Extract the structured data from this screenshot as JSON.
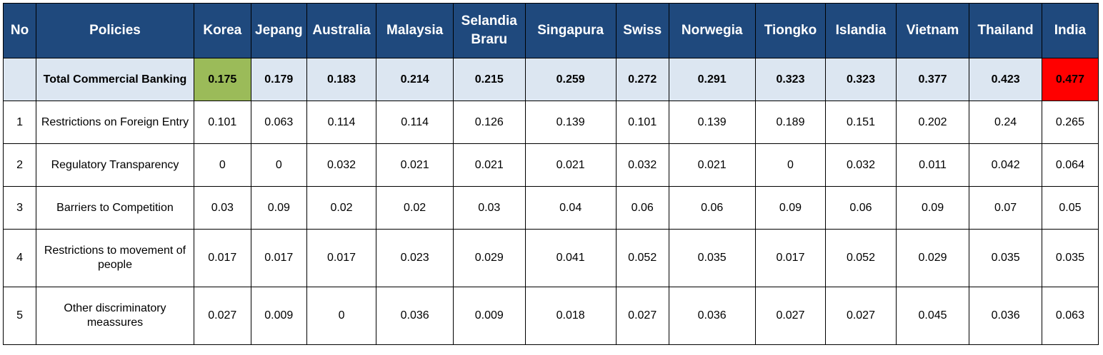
{
  "table": {
    "header": {
      "no": "No",
      "policies": "Policies",
      "countries": [
        "Korea",
        "Jepang",
        "Australia",
        "Malaysia",
        "Selandia Braru",
        "Singapura",
        "Swiss",
        "Norwegia",
        "Tiongko",
        "Islandia",
        "Vietnam",
        "Thailand",
        "India"
      ]
    },
    "total": {
      "no": "",
      "policy": "Total Commercial Banking",
      "values": [
        "0.175",
        "0.179",
        "0.183",
        "0.214",
        "0.215",
        "0.259",
        "0.272",
        "0.291",
        "0.323",
        "0.323",
        "0.377",
        "0.423",
        "0.477"
      ]
    },
    "rows": [
      {
        "no": "1",
        "policy": "Restrictions on Foreign Entry",
        "values": [
          "0.101",
          "0.063",
          "0.114",
          "0.114",
          "0.126",
          "0.139",
          "0.101",
          "0.139",
          "0.189",
          "0.151",
          "0.202",
          "0.24",
          "0.265"
        ]
      },
      {
        "no": "2",
        "policy": "Regulatory Transparency",
        "values": [
          "0",
          "0",
          "0.032",
          "0.021",
          "0.021",
          "0.021",
          "0.032",
          "0.021",
          "0",
          "0.032",
          "0.011",
          "0.042",
          "0.064"
        ]
      },
      {
        "no": "3",
        "policy": "Barriers to Competition",
        "values": [
          "0.03",
          "0.09",
          "0.02",
          "0.02",
          "0.03",
          "0.04",
          "0.06",
          "0.06",
          "0.09",
          "0.06",
          "0.09",
          "0.07",
          "0.05"
        ]
      },
      {
        "no": "4",
        "policy": "Restrictions to movement of people",
        "values": [
          "0.017",
          "0.017",
          "0.017",
          "0.023",
          "0.029",
          "0.041",
          "0.052",
          "0.035",
          "0.017",
          "0.052",
          "0.029",
          "0.035",
          "0.035"
        ]
      },
      {
        "no": "5",
        "policy": "Other discriminatory meassures",
        "values": [
          "0.027",
          "0.009",
          "0",
          "0.036",
          "0.009",
          "0.018",
          "0.027",
          "0.036",
          "0.027",
          "0.027",
          "0.045",
          "0.036",
          "0.063"
        ]
      }
    ],
    "colors": {
      "header_bg": "#1f497d",
      "total_bg": "#dce6f1",
      "lowest_total_bg": "#9bbb59",
      "highest_total_bg": "#ff0000"
    }
  }
}
